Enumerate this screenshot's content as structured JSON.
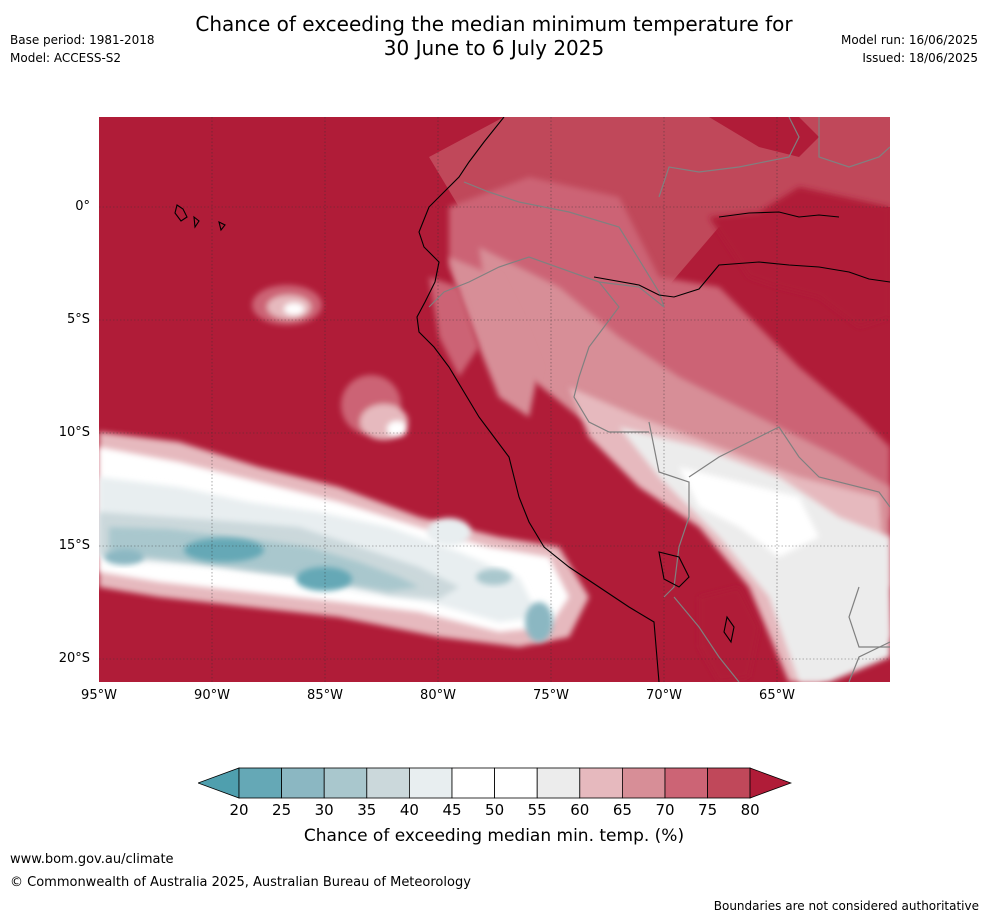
{
  "header": {
    "title_line1": "Chance of exceeding the median minimum temperature for",
    "title_line2": "30 June to 6 July 2025",
    "base_period": "Base period: 1981-2018",
    "model": "Model: ACCESS-S2",
    "model_run": "Model run: 16/06/2025",
    "issued": "Issued: 18/06/2025"
  },
  "map": {
    "lat_labels": [
      "0°",
      "5°S",
      "10°S",
      "15°S",
      "20°S"
    ],
    "lon_labels": [
      "95°W",
      "90°W",
      "85°W",
      "80°W",
      "75°W",
      "70°W",
      "65°W"
    ],
    "colors": {
      "ocean_high": "#b01c38",
      "high_75_80": "#c0485a",
      "high_70_75": "#cc6475",
      "high_65_70": "#d78e97",
      "high_60_65": "#e6b9be",
      "neutral_55_60": "#ececec",
      "neutral_50": "#ffffff",
      "low_40_45": "#e8eef0",
      "low_35_40": "#cbd8db",
      "low_30_35": "#a9c7cd",
      "low_25_30": "#8bb7c2",
      "low_20_25": "#65a8b6",
      "coast": "#000000",
      "border": "#808080"
    }
  },
  "colorbar": {
    "ticks": [
      "20",
      "25",
      "30",
      "35",
      "40",
      "45",
      "50",
      "55",
      "60",
      "65",
      "70",
      "75",
      "80"
    ],
    "colors": [
      "#65a8b6",
      "#8bb7c2",
      "#a9c7cd",
      "#cbd8db",
      "#e8eef0",
      "#ffffff",
      "#ffffff",
      "#ececec",
      "#e6b9be",
      "#d78e97",
      "#cc6475",
      "#c0485a"
    ],
    "under_color": "#4f9fae",
    "over_color": "#b01c38",
    "title": "Chance of exceeding median min. temp. (%)"
  },
  "footer": {
    "url": "www.bom.gov.au/climate",
    "copyright": "© Commonwealth of Australia 2025, Australian Bureau of Meteorology",
    "disclaimer": "Boundaries are not considered authoritative"
  }
}
